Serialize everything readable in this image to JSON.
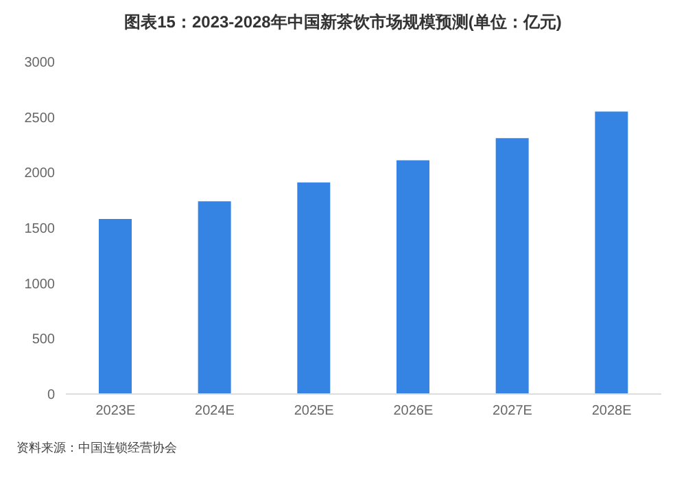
{
  "chart_data": {
    "type": "bar",
    "title": "图表15：2023-2028年中国新茶饮市场规模预测(单位：亿元)",
    "categories": [
      "2023E",
      "2024E",
      "2025E",
      "2026E",
      "2027E",
      "2028E"
    ],
    "values": [
      1580,
      1740,
      1910,
      2110,
      2310,
      2550
    ],
    "color": "#3584e4",
    "ylim": [
      0,
      3000
    ],
    "yticks": [
      0,
      500,
      1000,
      1500,
      2000,
      2500,
      3000
    ],
    "grid": false,
    "annotations": [
      "资料来源：中国连锁经营协会"
    ]
  }
}
